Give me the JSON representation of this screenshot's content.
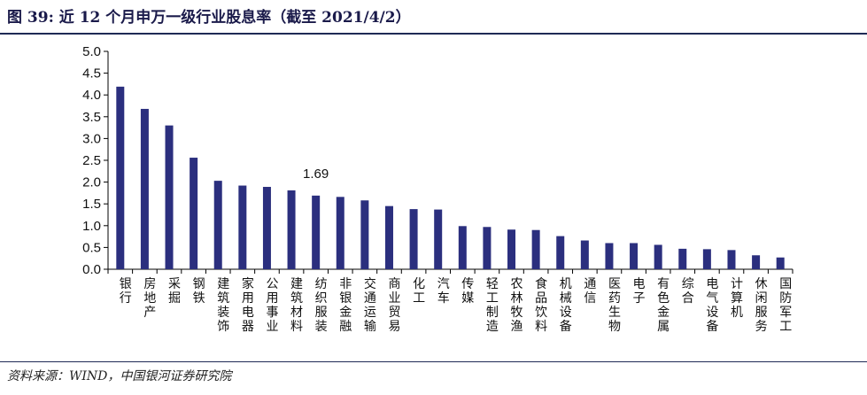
{
  "header": {
    "title": "图 39: 近 12 个月申万一级行业股息率（截至 2021/4/2）"
  },
  "footer": {
    "source": "资料来源：WIND，中国银河证券研究院"
  },
  "colors": {
    "bar": "#2b2f7e",
    "rule": "#1f2a55"
  },
  "chart_data": {
    "type": "bar",
    "title": "近 12 个月申万一级行业股息率（截至 2021/4/2）",
    "xlabel": "",
    "ylabel": "",
    "ylim": [
      0,
      5
    ],
    "yticks": [
      "0.0",
      "0.5",
      "1.0",
      "1.5",
      "2.0",
      "2.5",
      "3.0",
      "3.5",
      "4.0",
      "4.5",
      "5.0"
    ],
    "categories": [
      "银行",
      "房地产",
      "采掘",
      "钢铁",
      "建筑装饰",
      "家用电器",
      "公用事业",
      "建筑材料",
      "纺织服装",
      "非银金融",
      "交通运输",
      "商业贸易",
      "化工",
      "汽车",
      "传媒",
      "轻工制造",
      "农林牧渔",
      "食品饮料",
      "机械设备",
      "通信",
      "医药生物",
      "电子",
      "有色金属",
      "综合",
      "电气设备",
      "计算机",
      "休闲服务",
      "国防军工"
    ],
    "values": [
      4.19,
      3.68,
      3.3,
      2.56,
      2.03,
      1.92,
      1.89,
      1.81,
      1.69,
      1.66,
      1.58,
      1.45,
      1.38,
      1.37,
      0.99,
      0.97,
      0.91,
      0.9,
      0.76,
      0.66,
      0.6,
      0.6,
      0.56,
      0.47,
      0.46,
      0.44,
      0.32,
      0.27
    ],
    "annotations": [
      {
        "category": "纺织服装",
        "text": "1.69"
      }
    ],
    "grid": false,
    "legend": "none"
  }
}
